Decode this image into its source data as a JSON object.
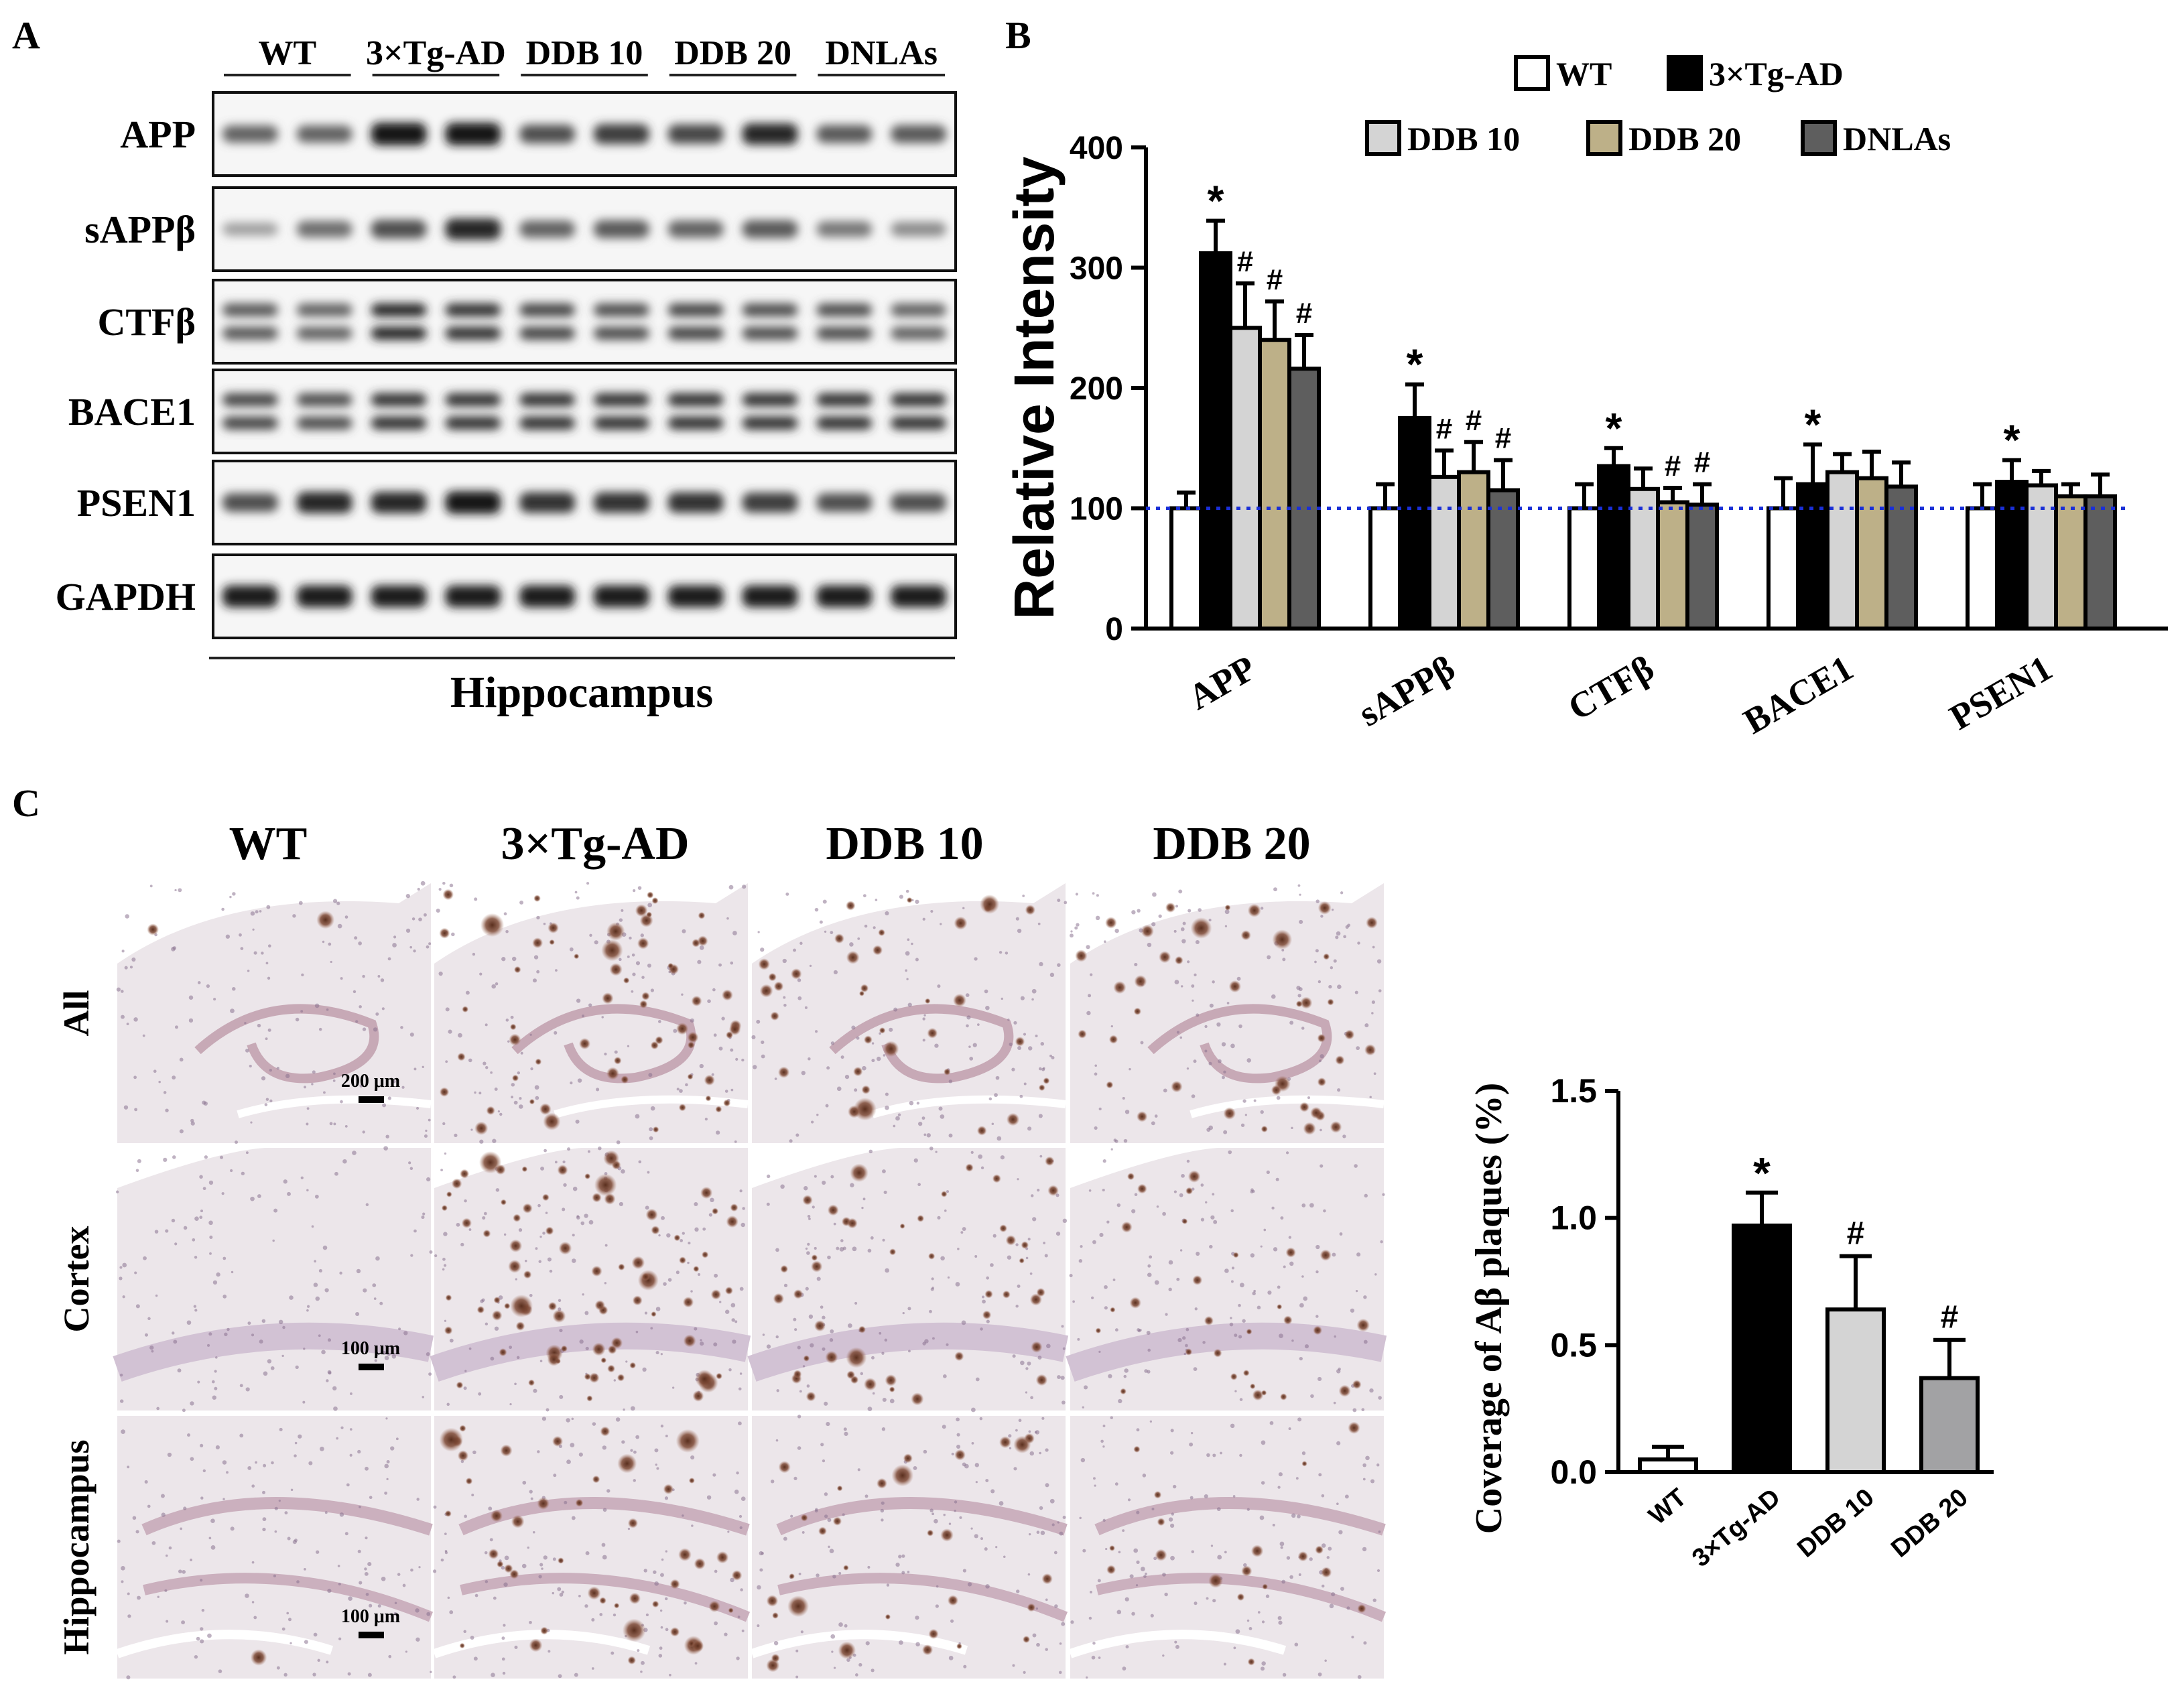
{
  "panel_a": {
    "letter": "A",
    "groups": [
      "WT",
      "3×Tg-AD",
      "DDB 10",
      "DDB 20",
      "DNLAs"
    ],
    "proteins": [
      "APP",
      "sAPPβ",
      "CTFβ",
      "BACE1",
      "PSEN1",
      "GAPDH"
    ],
    "region": "Hippocampus",
    "bands": {
      "APP": {
        "intensity": [
          0.55,
          0.55,
          0.95,
          0.95,
          0.65,
          0.75,
          0.7,
          0.85,
          0.6,
          0.6
        ],
        "double": false
      },
      "sAPPβ": {
        "intensity": [
          0.25,
          0.5,
          0.65,
          0.85,
          0.55,
          0.6,
          0.55,
          0.6,
          0.45,
          0.35
        ],
        "double": false
      },
      "CTFβ": {
        "intensity": [
          0.6,
          0.55,
          0.85,
          0.8,
          0.7,
          0.65,
          0.7,
          0.65,
          0.65,
          0.55
        ],
        "double": true
      },
      "BACE1": {
        "intensity": [
          0.7,
          0.65,
          0.8,
          0.8,
          0.8,
          0.8,
          0.8,
          0.8,
          0.8,
          0.8
        ],
        "double": true
      },
      "PSEN1": {
        "intensity": [
          0.65,
          0.85,
          0.85,
          0.95,
          0.8,
          0.8,
          0.8,
          0.75,
          0.65,
          0.65
        ],
        "double": false
      },
      "GAPDH": {
        "intensity": [
          0.9,
          0.9,
          0.9,
          0.9,
          0.9,
          0.9,
          0.9,
          0.9,
          0.9,
          0.9
        ],
        "double": false
      }
    }
  },
  "panel_b": {
    "letter": "B",
    "legend": [
      "WT",
      "3×Tg-AD",
      "DDB 10",
      "DDB 20",
      "DNLAs"
    ],
    "colors": [
      "#ffffff",
      "#000000",
      "#d4d4d4",
      "#bdb088",
      "#5e5e5e"
    ]
  },
  "panel_c": {
    "letter": "C",
    "col_labels": [
      "WT",
      "3×Tg-AD",
      "DDB 10",
      "DDB 20"
    ],
    "row_labels": [
      "All",
      "Cortex",
      "Hippocampus"
    ],
    "scale_bars": [
      "200 μm",
      "100 μm",
      "100 μm"
    ],
    "plaques": [
      [
        2,
        60,
        35,
        40
      ],
      [
        0,
        80,
        45,
        30
      ],
      [
        1,
        45,
        30,
        18
      ]
    ],
    "colors": [
      "#ffffff",
      "#000000",
      "#d4d4d4",
      "#a2a2a4"
    ]
  },
  "chart_data": [
    {
      "type": "bar",
      "ylabel": "Relative Intensity",
      "ylim": [
        0,
        400
      ],
      "yticks": [
        0,
        100,
        200,
        300,
        400
      ],
      "categories": [
        "APP",
        "sAPPβ",
        "CTFβ",
        "BACE1",
        "PSEN1"
      ],
      "reference_line": 100,
      "legend": "top",
      "series": [
        {
          "name": "WT",
          "values": [
            100,
            100,
            100,
            100,
            100
          ],
          "errors": [
            13,
            20,
            20,
            25,
            20
          ]
        },
        {
          "name": "3×Tg-AD",
          "values": [
            312,
            175,
            135,
            120,
            122
          ],
          "errors": [
            27,
            28,
            15,
            33,
            18
          ]
        },
        {
          "name": "DDB 10",
          "values": [
            250,
            126,
            116,
            130,
            119
          ],
          "errors": [
            37,
            22,
            17,
            15,
            12
          ]
        },
        {
          "name": "DDB 20",
          "values": [
            240,
            130,
            105,
            125,
            110
          ],
          "errors": [
            32,
            25,
            12,
            22,
            10
          ]
        },
        {
          "name": "DNLAs",
          "values": [
            216,
            115,
            103,
            118,
            110
          ],
          "errors": [
            28,
            25,
            17,
            20,
            18
          ]
        }
      ],
      "annotations": [
        {
          "category": 0,
          "series": 1,
          "text": "*"
        },
        {
          "category": 0,
          "series": 2,
          "text": "#"
        },
        {
          "category": 0,
          "series": 3,
          "text": "#"
        },
        {
          "category": 0,
          "series": 4,
          "text": "#"
        },
        {
          "category": 1,
          "series": 1,
          "text": "*"
        },
        {
          "category": 1,
          "series": 2,
          "text": "#"
        },
        {
          "category": 1,
          "series": 3,
          "text": "#"
        },
        {
          "category": 1,
          "series": 4,
          "text": "#"
        },
        {
          "category": 2,
          "series": 1,
          "text": "*"
        },
        {
          "category": 2,
          "series": 3,
          "text": "#"
        },
        {
          "category": 2,
          "series": 4,
          "text": "#"
        },
        {
          "category": 3,
          "series": 1,
          "text": "*"
        },
        {
          "category": 4,
          "series": 1,
          "text": "*"
        }
      ]
    },
    {
      "type": "bar",
      "ylabel": "Coverage of Aβ plaques (%)",
      "ylim": [
        0,
        1.5
      ],
      "yticks": [
        "0.0",
        "0.5",
        "1.0",
        "1.5"
      ],
      "categories": [
        "WT",
        "3×Tg-AD",
        "DDB 10",
        "DDB 20"
      ],
      "values": [
        0.05,
        0.97,
        0.64,
        0.37
      ],
      "errors": [
        0.05,
        0.13,
        0.21,
        0.15
      ],
      "annotations": [
        "",
        "*",
        "#",
        "#"
      ]
    }
  ]
}
